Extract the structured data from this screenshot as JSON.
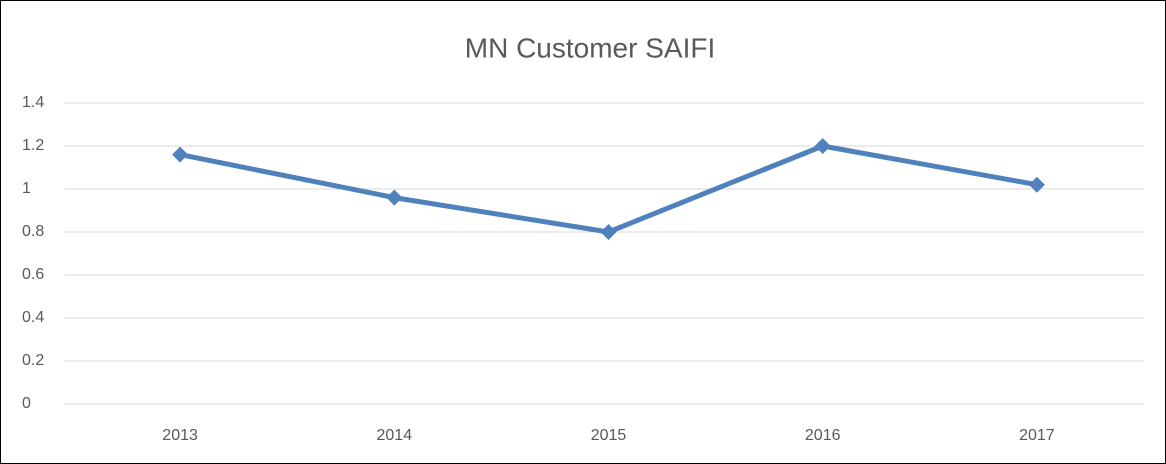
{
  "chart_data": {
    "type": "line",
    "title": "MN Customer SAIFI",
    "categories": [
      "2013",
      "2014",
      "2015",
      "2016",
      "2017"
    ],
    "series": [
      {
        "name": "SAIFI",
        "color": "#4f81bd",
        "values": [
          1.16,
          0.96,
          0.8,
          1.2,
          1.02
        ]
      }
    ],
    "ylim": [
      0,
      1.4
    ],
    "yticks": [
      0,
      0.2,
      0.4,
      0.6,
      0.8,
      1,
      1.2,
      1.4
    ],
    "grid": true,
    "legend": false
  }
}
